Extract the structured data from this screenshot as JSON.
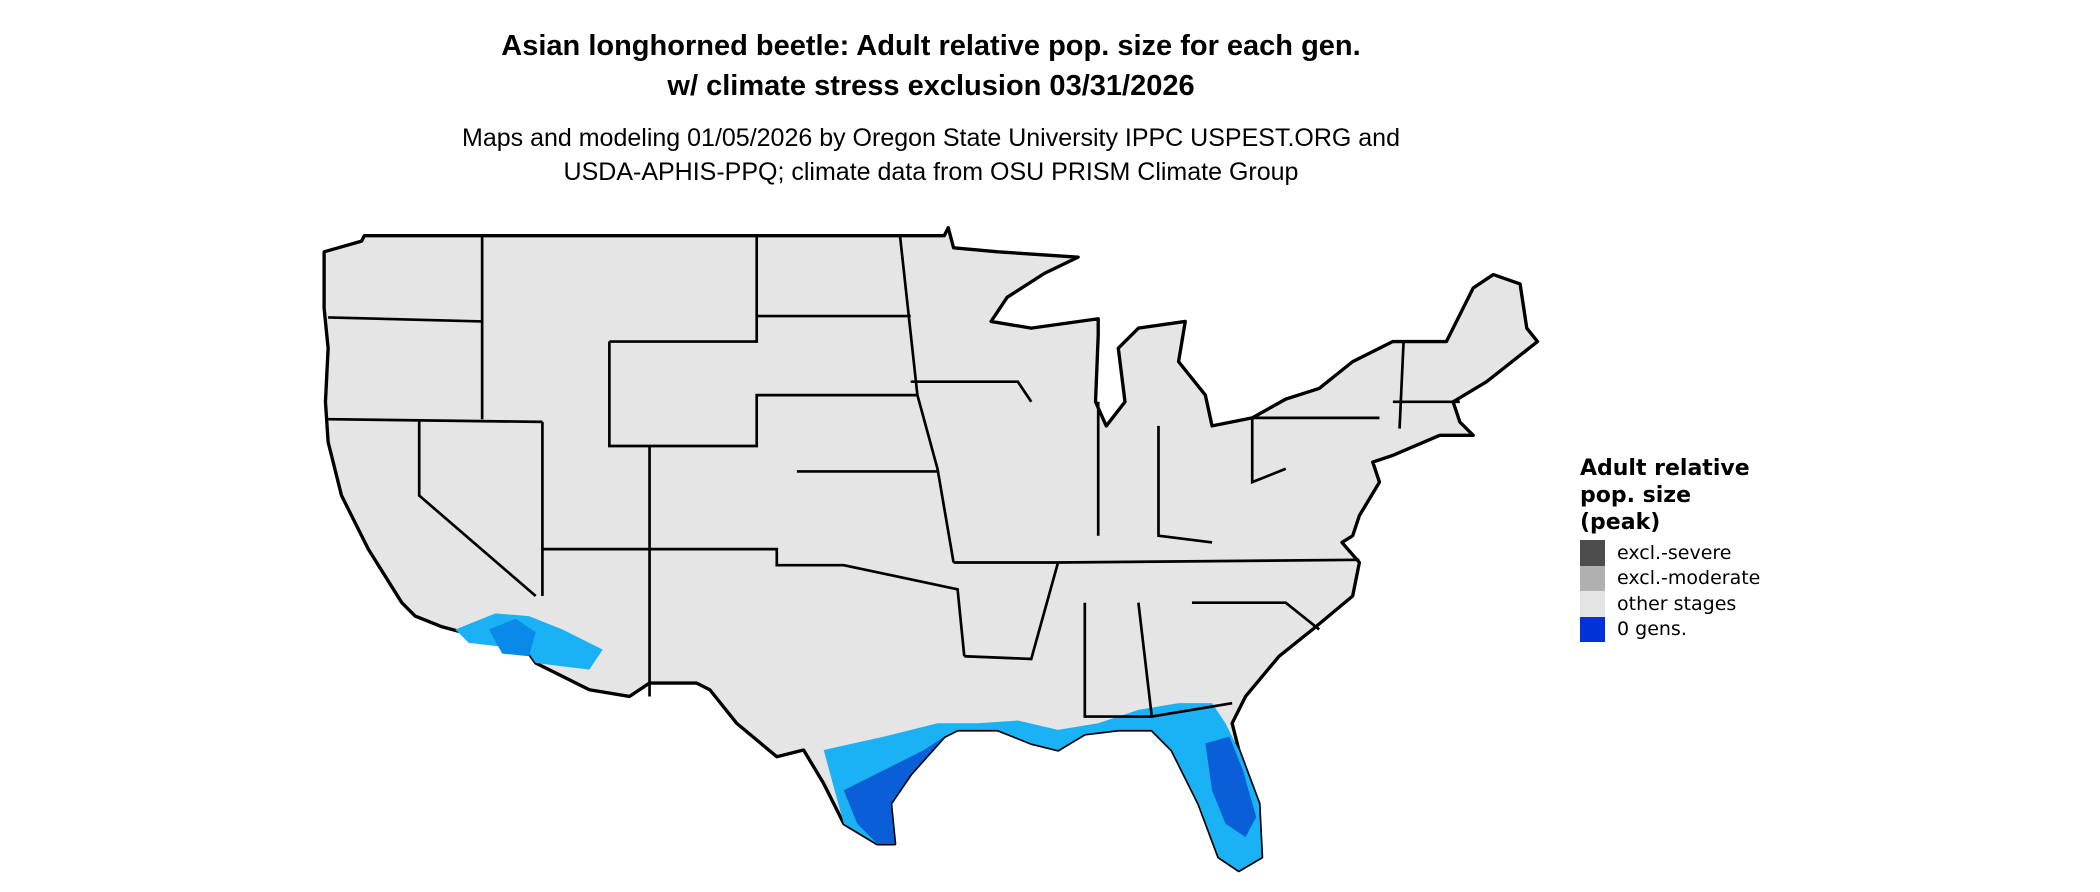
{
  "title": {
    "line1": "Asian longhorned beetle: Adult relative pop. size for each gen.",
    "line2": "w/ climate stress exclusion 03/31/2026"
  },
  "subtitle": {
    "line1": "Maps and modeling 01/05/2026 by Oregon State University IPPC USPEST.ORG and",
    "line2": "USDA-APHIS-PPQ; climate data from OSU PRISM Climate Group"
  },
  "legend": {
    "title_lines": [
      "Adult relative",
      "pop. size",
      "(peak)"
    ],
    "items": [
      {
        "label": "excl.-severe",
        "color": "#4d4d4d"
      },
      {
        "label": "excl.-moderate",
        "color": "#b0b0b0"
      },
      {
        "label": "other stages",
        "color": "#e5e5e5"
      },
      {
        "label": "0 gens.",
        "color": "#0033d6"
      }
    ]
  },
  "map_colors": {
    "land": "#e5e5e5",
    "border": "#000000",
    "light_blue": "#1ab2f5",
    "mid_blue": "#0a8ae8",
    "dark_blue": "#0a5fd8"
  }
}
